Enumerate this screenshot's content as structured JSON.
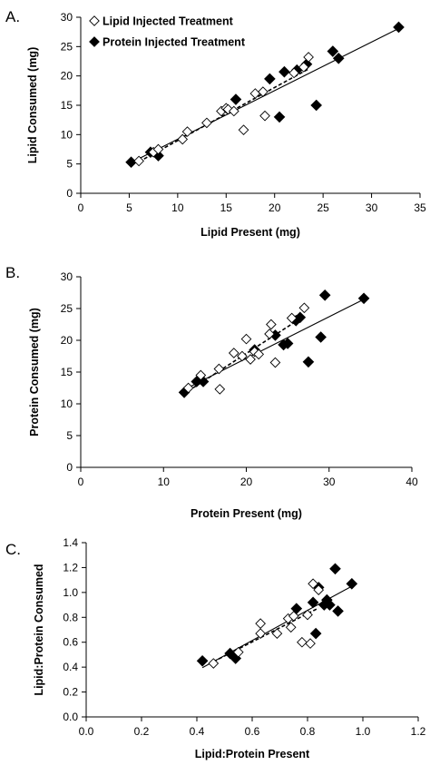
{
  "colors": {
    "lipid_marker": "#ffffff",
    "protein_marker": "#000000",
    "axis": "#000000"
  },
  "chart_data": [
    {
      "panel_label": "A.",
      "type": "scatter",
      "xlabel": "Lipid Present (mg)",
      "ylabel": "Lipid Consumed (mg)",
      "xlim": [
        0,
        35
      ],
      "ylim": [
        0,
        30
      ],
      "xticks": [
        0,
        5,
        10,
        15,
        20,
        25,
        30,
        35
      ],
      "yticks": [
        0,
        5,
        10,
        15,
        20,
        25,
        30
      ],
      "legend": {
        "placement": "top-left"
      },
      "series": [
        {
          "name": "Lipid Injected Treatment",
          "marker": "open-diamond",
          "fit": "dashed",
          "points": [
            [
              6,
              5.5
            ],
            [
              7.5,
              7
            ],
            [
              8,
              7.5
            ],
            [
              10.5,
              9.2
            ],
            [
              11,
              10.5
            ],
            [
              13,
              12
            ],
            [
              14.5,
              14
            ],
            [
              15,
              14.5
            ],
            [
              15.2,
              14.3
            ],
            [
              15.8,
              14
            ],
            [
              16.8,
              10.8
            ],
            [
              18,
              17
            ],
            [
              18.8,
              17.3
            ],
            [
              19,
              13.2
            ],
            [
              22,
              20.5
            ],
            [
              23,
              21.5
            ],
            [
              23.5,
              23.2
            ]
          ]
        },
        {
          "name": "Protein Injected Treatment",
          "marker": "filled-diamond",
          "fit": "solid",
          "points": [
            [
              5.2,
              5.3
            ],
            [
              7.2,
              7
            ],
            [
              8,
              6.4
            ],
            [
              16,
              16
            ],
            [
              19.5,
              19.5
            ],
            [
              20.5,
              13
            ],
            [
              21,
              20.7
            ],
            [
              22.3,
              21
            ],
            [
              23.3,
              22
            ],
            [
              24.3,
              15
            ],
            [
              26,
              24.2
            ],
            [
              26.6,
              23
            ],
            [
              32.8,
              28.3
            ]
          ]
        }
      ]
    },
    {
      "panel_label": "B.",
      "type": "scatter",
      "xlabel": "Protein Present (mg)",
      "ylabel": "Protein Consumed (mg)",
      "xlim": [
        0,
        40
      ],
      "ylim": [
        0,
        30
      ],
      "xticks": [
        0,
        10,
        20,
        30,
        40
      ],
      "yticks": [
        0,
        5,
        10,
        15,
        20,
        25,
        30
      ],
      "series": [
        {
          "name": "Lipid Injected Treatment",
          "marker": "open-diamond",
          "fit": "dashed",
          "points": [
            [
              13,
              12.5
            ],
            [
              14.5,
              14.5
            ],
            [
              16.7,
              15.5
            ],
            [
              16.8,
              12.3
            ],
            [
              18.5,
              18
            ],
            [
              19.5,
              17.5
            ],
            [
              20,
              20.2
            ],
            [
              20.5,
              17
            ],
            [
              21,
              18.2
            ],
            [
              21.5,
              17.8
            ],
            [
              22.8,
              21
            ],
            [
              23,
              22.5
            ],
            [
              23.5,
              16.5
            ],
            [
              25.5,
              23.5
            ],
            [
              27,
              25.1
            ]
          ]
        },
        {
          "name": "Protein Injected Treatment",
          "marker": "filled-diamond",
          "fit": "solid",
          "points": [
            [
              12.5,
              11.8
            ],
            [
              14,
              13.5
            ],
            [
              14.8,
              13.5
            ],
            [
              21,
              18.5
            ],
            [
              23.5,
              20.8
            ],
            [
              24.5,
              19.3
            ],
            [
              25,
              19.5
            ],
            [
              26,
              23.1
            ],
            [
              26.5,
              23.6
            ],
            [
              27.5,
              16.6
            ],
            [
              29,
              20.5
            ],
            [
              29.5,
              27.1
            ],
            [
              34.2,
              26.6
            ]
          ]
        }
      ]
    },
    {
      "panel_label": "C.",
      "type": "scatter",
      "xlabel": "Lipid:Protein Present",
      "ylabel": "Lipid:Protein Consumed",
      "xlim": [
        0.0,
        1.2
      ],
      "ylim": [
        0.0,
        1.4
      ],
      "xticks": [
        "0.0",
        "0.2",
        "0.4",
        "0.6",
        "0.8",
        "1.0",
        "1.2"
      ],
      "yticks": [
        "0.0",
        "0.2",
        "0.4",
        "0.6",
        "0.8",
        "1.0",
        "1.2",
        "1.4"
      ],
      "series": [
        {
          "name": "Lipid Injected Treatment",
          "marker": "open-diamond",
          "fit": "dashed",
          "points": [
            [
              0.46,
              0.43
            ],
            [
              0.55,
              0.52
            ],
            [
              0.63,
              0.75
            ],
            [
              0.63,
              0.67
            ],
            [
              0.69,
              0.67
            ],
            [
              0.73,
              0.79
            ],
            [
              0.74,
              0.72
            ],
            [
              0.75,
              0.81
            ],
            [
              0.78,
              0.6
            ],
            [
              0.8,
              0.82
            ],
            [
              0.81,
              0.59
            ],
            [
              0.82,
              1.07
            ],
            [
              0.84,
              1.02
            ]
          ]
        },
        {
          "name": "Protein Injected Treatment",
          "marker": "filled-diamond",
          "fit": "solid",
          "points": [
            [
              0.42,
              0.45
            ],
            [
              0.52,
              0.51
            ],
            [
              0.54,
              0.47
            ],
            [
              0.76,
              0.87
            ],
            [
              0.82,
              0.92
            ],
            [
              0.83,
              0.67
            ],
            [
              0.84,
              1.04
            ],
            [
              0.86,
              0.9
            ],
            [
              0.87,
              0.94
            ],
            [
              0.88,
              0.9
            ],
            [
              0.9,
              1.19
            ],
            [
              0.91,
              0.85
            ],
            [
              0.96,
              1.07
            ]
          ]
        }
      ]
    }
  ]
}
